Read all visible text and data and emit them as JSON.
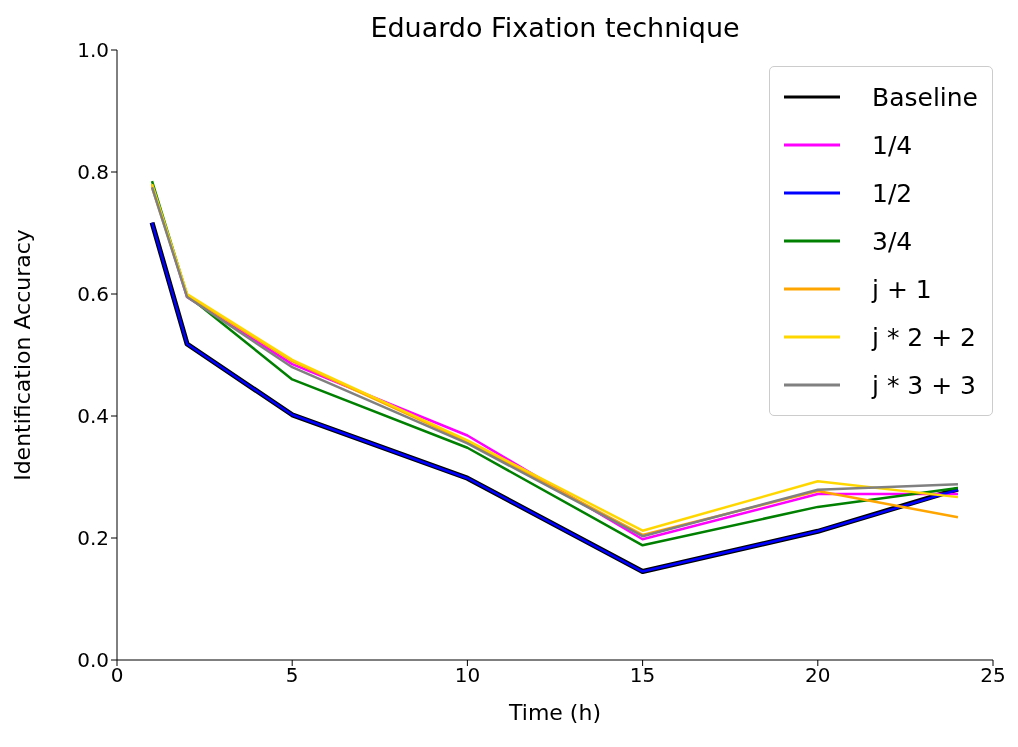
{
  "chart_data": {
    "type": "line",
    "title": "Eduardo Fixation technique",
    "xlabel": "Time (h)",
    "ylabel": "Identification Accuracy",
    "x": [
      1,
      2,
      5,
      10,
      15,
      20,
      24
    ],
    "series": [
      {
        "name": "Baseline",
        "color": "#000000",
        "values": [
          0.717,
          0.518,
          0.402,
          0.298,
          0.145,
          0.211,
          0.28
        ]
      },
      {
        "name": "1/4",
        "color": "#ff00ff",
        "values": [
          0.78,
          0.595,
          0.485,
          0.368,
          0.198,
          0.272,
          0.272
        ]
      },
      {
        "name": "1/2",
        "color": "#0000ff",
        "values": [
          0.717,
          0.518,
          0.402,
          0.298,
          0.145,
          0.211,
          0.279
        ]
      },
      {
        "name": "3/4",
        "color": "#008000",
        "values": [
          0.785,
          0.598,
          0.46,
          0.348,
          0.188,
          0.251,
          0.282
        ]
      },
      {
        "name": "j + 1",
        "color": "#ffa500",
        "values": [
          0.775,
          0.598,
          0.49,
          0.358,
          0.205,
          0.277,
          0.234
        ]
      },
      {
        "name": "j * 2 + 2",
        "color": "#ffd700",
        "values": [
          0.78,
          0.6,
          0.492,
          0.36,
          0.212,
          0.293,
          0.267
        ]
      },
      {
        "name": "j * 3 + 3",
        "color": "#808080",
        "values": [
          0.775,
          0.595,
          0.48,
          0.355,
          0.203,
          0.279,
          0.288
        ]
      }
    ],
    "xlim": [
      0,
      25
    ],
    "xticks": [
      0,
      5,
      10,
      15,
      20,
      25
    ],
    "ylim": [
      0,
      1
    ],
    "yticks": [
      {
        "value": 0,
        "label": "0.0"
      },
      {
        "value": 0.2,
        "label": "0.2"
      },
      {
        "value": 0.4,
        "label": "0.4"
      },
      {
        "value": 0.6,
        "label": "0.6"
      },
      {
        "value": 0.8,
        "label": "0.8"
      },
      {
        "value": 1,
        "label": "1.0"
      }
    ],
    "grid": false,
    "legend": "top right",
    "line_style": "solid",
    "marker": "none"
  }
}
